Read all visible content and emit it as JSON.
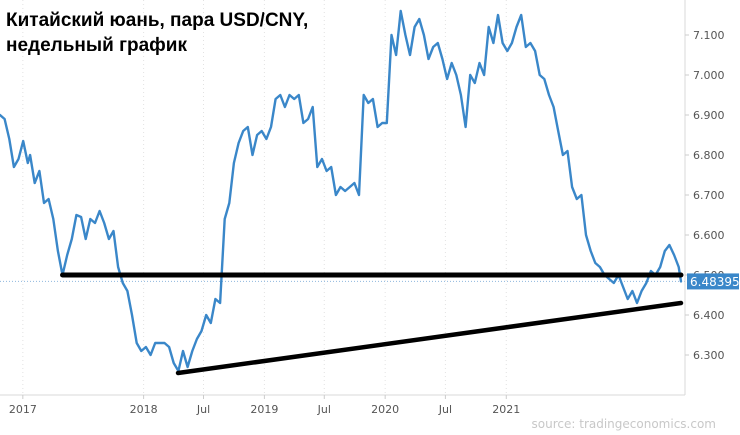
{
  "title_line1": "Китайский юань, пара USD/CNY,",
  "title_line2": "недельный график",
  "source": "source: tradingeconomics.com",
  "colors": {
    "series": "#3a87c9",
    "annotation": "#000000",
    "last_label_bg": "#3a87c9"
  },
  "chart_data": {
    "type": "line",
    "series": [
      {
        "values": [
          [
            "2016-10-24",
            6.9
          ],
          [
            "2016-11-07",
            6.89
          ],
          [
            "2016-11-21",
            6.84
          ],
          [
            "2016-12-05",
            6.77
          ],
          [
            "2016-12-19",
            6.79
          ],
          [
            "2017-01-02",
            6.835
          ],
          [
            "2017-01-16",
            6.78
          ],
          [
            "2017-01-23",
            6.8
          ],
          [
            "2017-02-06",
            6.73
          ],
          [
            "2017-02-20",
            6.76
          ],
          [
            "2017-03-06",
            6.68
          ],
          [
            "2017-03-20",
            6.69
          ],
          [
            "2017-04-03",
            6.64
          ],
          [
            "2017-04-17",
            6.56
          ],
          [
            "2017-05-01",
            6.5
          ],
          [
            "2017-05-15",
            6.55
          ],
          [
            "2017-05-29",
            6.59
          ],
          [
            "2017-06-12",
            6.65
          ],
          [
            "2017-06-26",
            6.645
          ],
          [
            "2017-07-10",
            6.59
          ],
          [
            "2017-07-24",
            6.64
          ],
          [
            "2017-08-07",
            6.63
          ],
          [
            "2017-08-21",
            6.66
          ],
          [
            "2017-09-04",
            6.63
          ],
          [
            "2017-09-18",
            6.59
          ],
          [
            "2017-10-02",
            6.61
          ],
          [
            "2017-10-16",
            6.52
          ],
          [
            "2017-10-30",
            6.48
          ],
          [
            "2017-11-13",
            6.46
          ],
          [
            "2017-11-27",
            6.4
          ],
          [
            "2017-12-11",
            6.33
          ],
          [
            "2017-12-25",
            6.31
          ],
          [
            "2018-01-08",
            6.32
          ],
          [
            "2018-01-22",
            6.3
          ],
          [
            "2018-02-05",
            6.33
          ],
          [
            "2018-02-19",
            6.33
          ],
          [
            "2018-03-05",
            6.33
          ],
          [
            "2018-03-19",
            6.32
          ],
          [
            "2018-04-02",
            6.28
          ],
          [
            "2018-04-16",
            6.26
          ],
          [
            "2018-04-30",
            6.31
          ],
          [
            "2018-05-14",
            6.27
          ],
          [
            "2018-05-28",
            6.31
          ],
          [
            "2018-06-11",
            6.34
          ],
          [
            "2018-06-25",
            6.36
          ],
          [
            "2018-07-09",
            6.4
          ],
          [
            "2018-07-23",
            6.38
          ],
          [
            "2018-08-06",
            6.44
          ],
          [
            "2018-08-20",
            6.43
          ],
          [
            "2018-09-03",
            6.64
          ],
          [
            "2018-09-17",
            6.68
          ],
          [
            "2018-10-01",
            6.78
          ],
          [
            "2018-10-15",
            6.83
          ],
          [
            "2018-10-29",
            6.86
          ],
          [
            "2018-11-12",
            6.87
          ],
          [
            "2018-11-26",
            6.8
          ],
          [
            "2018-12-10",
            6.85
          ],
          [
            "2018-12-24",
            6.86
          ],
          [
            "2019-01-07",
            6.84
          ],
          [
            "2019-01-21",
            6.87
          ],
          [
            "2019-02-04",
            6.94
          ],
          [
            "2019-02-18",
            6.95
          ],
          [
            "2019-03-04",
            6.92
          ],
          [
            "2019-03-18",
            6.95
          ],
          [
            "2019-04-01",
            6.94
          ],
          [
            "2019-04-15",
            6.95
          ],
          [
            "2019-04-29",
            6.88
          ],
          [
            "2019-05-13",
            6.89
          ],
          [
            "2019-05-27",
            6.92
          ],
          [
            "2019-06-10",
            6.77
          ],
          [
            "2019-06-24",
            6.79
          ],
          [
            "2019-07-08",
            6.76
          ],
          [
            "2019-07-22",
            6.77
          ],
          [
            "2019-08-05",
            6.7
          ],
          [
            "2019-08-19",
            6.72
          ],
          [
            "2019-09-02",
            6.71
          ],
          [
            "2019-09-16",
            6.72
          ],
          [
            "2019-09-30",
            6.73
          ],
          [
            "2019-10-14",
            6.7
          ],
          [
            "2019-10-28",
            6.95
          ],
          [
            "2019-11-11",
            6.93
          ],
          [
            "2019-11-25",
            6.94
          ],
          [
            "2019-12-09",
            6.87
          ],
          [
            "2019-12-23",
            6.88
          ],
          [
            "2020-01-06",
            6.88
          ],
          [
            "2020-01-20",
            7.1
          ],
          [
            "2020-02-03",
            7.05
          ],
          [
            "2020-02-17",
            7.16
          ],
          [
            "2020-03-02",
            7.1
          ],
          [
            "2020-03-16",
            7.05
          ],
          [
            "2020-03-30",
            7.12
          ],
          [
            "2020-04-13",
            7.14
          ],
          [
            "2020-04-27",
            7.1
          ],
          [
            "2020-05-11",
            7.04
          ],
          [
            "2020-05-25",
            7.07
          ],
          [
            "2020-06-08",
            7.08
          ],
          [
            "2020-06-22",
            7.04
          ],
          [
            "2020-07-06",
            6.99
          ],
          [
            "2020-07-20",
            7.03
          ],
          [
            "2020-08-03",
            7.0
          ],
          [
            "2020-08-17",
            6.95
          ],
          [
            "2020-08-31",
            6.87
          ],
          [
            "2020-09-14",
            7.0
          ],
          [
            "2020-09-28",
            6.98
          ],
          [
            "2020-10-12",
            7.03
          ],
          [
            "2020-10-26",
            7.0
          ],
          [
            "2020-11-09",
            7.12
          ],
          [
            "2020-11-23",
            7.08
          ],
          [
            "2020-12-07",
            7.15
          ],
          [
            "2020-12-21",
            7.08
          ],
          [
            "2021-01-04",
            7.06
          ],
          [
            "2021-01-18",
            7.08
          ],
          [
            "2021-02-01",
            7.12
          ],
          [
            "2021-02-15",
            7.15
          ],
          [
            "2021-03-01",
            7.07
          ],
          [
            "2021-03-15",
            7.08
          ],
          [
            "2021-03-29",
            7.06
          ],
          [
            "2021-04-12",
            7.0
          ],
          [
            "2021-04-26",
            6.99
          ],
          [
            "2021-05-10",
            6.95
          ],
          [
            "2021-05-24",
            6.92
          ],
          [
            "2021-06-07",
            6.86
          ],
          [
            "2021-06-21",
            6.8
          ],
          [
            "2021-07-05",
            6.81
          ],
          [
            "2021-07-19",
            6.72
          ],
          [
            "2021-08-02",
            6.69
          ],
          [
            "2021-08-16",
            6.7
          ],
          [
            "2021-08-30",
            6.6
          ],
          [
            "2021-09-13",
            6.56
          ],
          [
            "2021-09-27",
            6.53
          ],
          [
            "2021-10-11",
            6.52
          ],
          [
            "2021-10-25",
            6.5
          ],
          [
            "2021-11-08",
            6.49
          ],
          [
            "2021-11-22",
            6.48
          ],
          [
            "2021-12-06",
            6.5
          ],
          [
            "2021-12-20",
            6.47
          ],
          [
            "2022-01-03",
            6.44
          ],
          [
            "2022-01-17",
            6.46
          ],
          [
            "2022-01-31",
            6.43
          ],
          [
            "2022-02-14",
            6.46
          ],
          [
            "2022-02-28",
            6.48
          ],
          [
            "2022-03-14",
            6.51
          ],
          [
            "2022-03-28",
            6.5
          ],
          [
            "2022-04-11",
            6.52
          ],
          [
            "2022-04-25",
            6.56
          ],
          [
            "2022-05-09",
            6.575
          ],
          [
            "2022-05-23",
            6.55
          ],
          [
            "2022-06-06",
            6.52
          ],
          [
            "2022-06-13",
            6.48395
          ]
        ]
      }
    ],
    "last_value_label": "6.48395",
    "x_ticks": [
      {
        "date": "2017-01-01",
        "label": "2017"
      },
      {
        "date": "2018-01-01",
        "label": "2018"
      },
      {
        "date": "2018-07-01",
        "label": "Jul"
      },
      {
        "date": "2019-01-01",
        "label": "2019"
      },
      {
        "date": "2019-07-01",
        "label": "Jul"
      },
      {
        "date": "2020-01-01",
        "label": "2020"
      },
      {
        "date": "2020-07-01",
        "label": "Jul"
      },
      {
        "date": "2021-01-01",
        "label": "2021"
      }
    ],
    "y_ticks": [
      "6.300",
      "6.400",
      "6.500",
      "6.600",
      "6.700",
      "6.800",
      "6.900",
      "7.000",
      "7.100"
    ],
    "ylim": [
      6.2,
      7.2
    ],
    "grid": "vertical dotted",
    "annotations": [
      {
        "type": "support-line",
        "from": [
          "2017-05-01",
          6.5
        ],
        "to": [
          "2022-06-13",
          6.5
        ]
      },
      {
        "type": "trend-line",
        "from": [
          "2018-04-15",
          6.255
        ],
        "to": [
          "2022-06-13",
          6.43
        ]
      }
    ]
  }
}
